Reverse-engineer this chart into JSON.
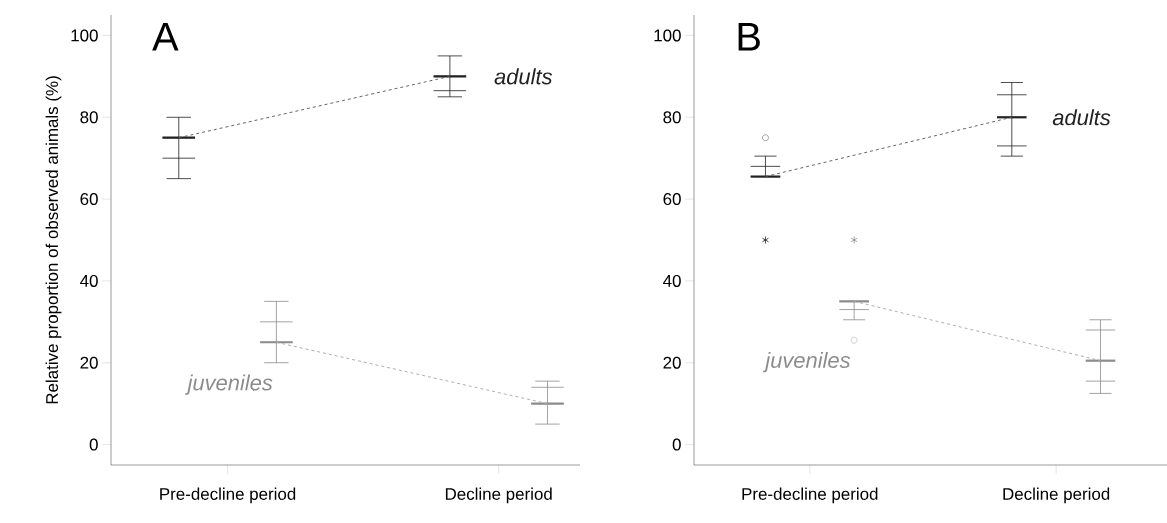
{
  "chart_data": [
    {
      "type": "box",
      "title": "A",
      "ylabel": "Relative proportion of observed animals (%)",
      "categories": [
        "Pre-decline period",
        "Decline period"
      ],
      "ylim": [
        -5,
        105
      ],
      "yticks": [
        0,
        20,
        40,
        60,
        80,
        100
      ],
      "series": [
        {
          "name": "adults",
          "color": "#222222",
          "boxes": [
            {
              "low": 65,
              "q1": 70,
              "median": 75,
              "q3": 75,
              "high": 80
            },
            {
              "low": 85,
              "q1": 86.5,
              "median": 90,
              "q3": 90,
              "high": 95
            }
          ]
        },
        {
          "type": "line",
          "color": "#555555",
          "line_style": "dashed",
          "marker": "none",
          "values": [
            75,
            90
          ]
        },
        {
          "name": "juveniles",
          "color": "#8c8c8c",
          "boxes": [
            {
              "low": 20,
              "q1": 25,
              "median": 25,
              "q3": 30,
              "high": 35
            },
            {
              "low": 5,
              "q1": 10,
              "median": 10,
              "q3": 14,
              "high": 15.5
            }
          ]
        },
        {
          "type": "line",
          "color": "#a6a6a6",
          "line_style": "dashed",
          "marker": "none",
          "values": [
            25,
            10
          ]
        }
      ]
    },
    {
      "type": "box",
      "title": "B",
      "categories": [
        "Pre-decline period",
        "Decline period"
      ],
      "ylim": [
        -5,
        105
      ],
      "yticks": [
        0,
        20,
        40,
        60,
        80,
        100
      ],
      "series": [
        {
          "name": "adults",
          "color": "#222222",
          "boxes": [
            {
              "low": 65.5,
              "q1": 65.5,
              "median": 65.5,
              "q3": 68,
              "high": 70.5,
              "outliers": [
                75
              ]
            },
            {
              "low": 70.5,
              "q1": 73,
              "median": 80,
              "q3": 85.5,
              "high": 88.5
            }
          ]
        },
        {
          "type": "scatter",
          "color": "#222222",
          "marker": "cross",
          "values": [
            50,
            null
          ]
        },
        {
          "type": "line",
          "color": "#555555",
          "line_style": "dashed",
          "marker": "none",
          "values": [
            65.5,
            80
          ]
        },
        {
          "name": "juveniles",
          "color": "#8c8c8c",
          "boxes": [
            {
              "low": 30.5,
              "q1": 33,
              "median": 35,
              "q3": 35,
              "high": 35,
              "outliers": [
                25.5
              ]
            },
            {
              "low": 12.5,
              "q1": 15.5,
              "median": 20.5,
              "q3": 28,
              "high": 30.5
            }
          ]
        },
        {
          "type": "scatter",
          "color": "#8c8c8c",
          "marker": "cross",
          "values": [
            50,
            null
          ]
        },
        {
          "type": "line",
          "color": "#a6a6a6",
          "line_style": "dashed",
          "marker": "none",
          "values": [
            35,
            20.5
          ]
        }
      ]
    }
  ]
}
